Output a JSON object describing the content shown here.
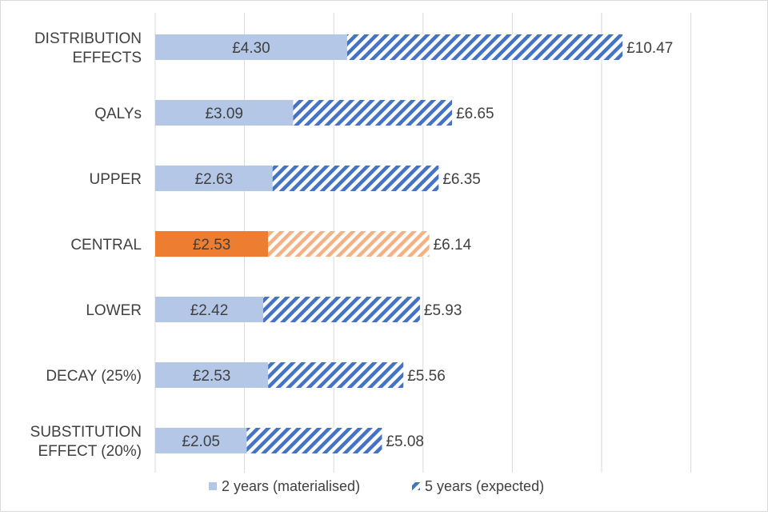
{
  "chart_data": {
    "type": "bar",
    "orientation": "horizontal",
    "stacked": true,
    "categories": [
      "DISTRIBUTION EFFECTS",
      "QALYs",
      "UPPER",
      "CENTRAL",
      "LOWER",
      "DECAY (25%)",
      "SUBSTITUTION EFFECT (20%)"
    ],
    "category_lines": [
      [
        "DISTRIBUTION",
        "EFFECTS"
      ],
      [
        "QALYs"
      ],
      [
        "UPPER"
      ],
      [
        "CENTRAL"
      ],
      [
        "LOWER"
      ],
      [
        "DECAY (25%)"
      ],
      [
        "SUBSTITUTION",
        "EFFECT (20%)"
      ]
    ],
    "series": [
      {
        "name": "2 years (materialised)",
        "values": [
          4.3,
          3.09,
          2.63,
          2.53,
          2.42,
          2.53,
          2.05
        ],
        "labels": [
          "£4.30",
          "£3.09",
          "£2.63",
          "£2.53",
          "£2.42",
          "£2.53",
          "£2.05"
        ]
      },
      {
        "name": "5 years (expected)",
        "totals": [
          10.47,
          6.65,
          6.35,
          6.14,
          5.93,
          5.56,
          5.08
        ],
        "labels": [
          "£10.47",
          "£6.65",
          "£6.35",
          "£6.14",
          "£5.93",
          "£5.56",
          "£5.08"
        ]
      }
    ],
    "highlight_category": "CENTRAL",
    "xlim": [
      0,
      12
    ],
    "grid": true,
    "legend": "bottom",
    "title": "",
    "xlabel": "",
    "ylabel": ""
  },
  "colors": {
    "two_year": "#b4c7e7",
    "five_year_stripe": "#4472c4",
    "highlight_solid": "#ed7d31",
    "highlight_stripe": "#f4b183",
    "gridline": "#d9d9d9",
    "text": "#404040"
  }
}
